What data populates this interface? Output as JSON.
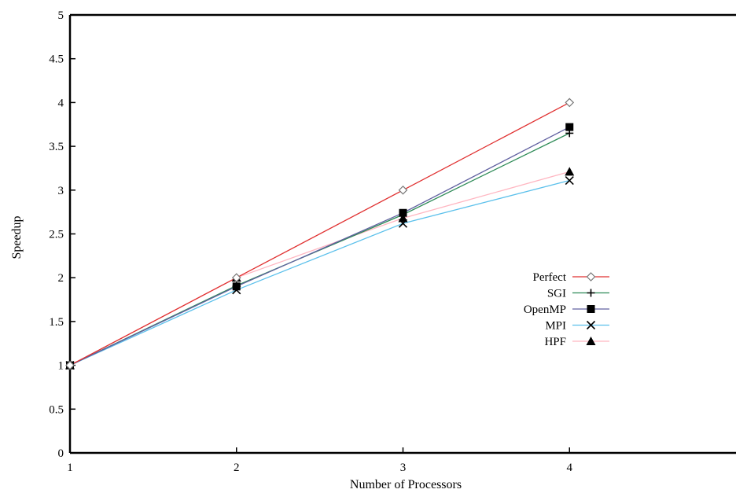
{
  "chart_data": {
    "type": "line",
    "title": "",
    "xlabel": "Number of Processors",
    "ylabel": "Speedup",
    "xlim": [
      1,
      5
    ],
    "ylim": [
      0,
      5
    ],
    "x_ticks": [
      "1",
      "2",
      "3",
      "4"
    ],
    "y_ticks": [
      "0",
      "0.5",
      "1",
      "1.5",
      "2",
      "2.5",
      "3",
      "3.5",
      "4",
      "4.5",
      "5"
    ],
    "grid": false,
    "legend_position": "right",
    "x": [
      1,
      2,
      3,
      4
    ],
    "series": [
      {
        "name": "Perfect",
        "values": [
          1,
          2,
          3,
          4
        ],
        "color": "#e03030",
        "marker": "diamond-open"
      },
      {
        "name": "SGI",
        "values": [
          1,
          1.91,
          2.72,
          3.65
        ],
        "color": "#2e8b57",
        "marker": "plus"
      },
      {
        "name": "OpenMP",
        "values": [
          1,
          1.9,
          2.74,
          3.72
        ],
        "color": "#6060a0",
        "marker": "square-filled"
      },
      {
        "name": "MPI",
        "values": [
          1,
          1.86,
          2.62,
          3.11
        ],
        "color": "#5bc0eb",
        "marker": "cross"
      },
      {
        "name": "HPF",
        "values": [
          1,
          2.0,
          2.68,
          3.21
        ],
        "color": "#ffb6c1",
        "marker": "triangle-filled"
      }
    ]
  }
}
